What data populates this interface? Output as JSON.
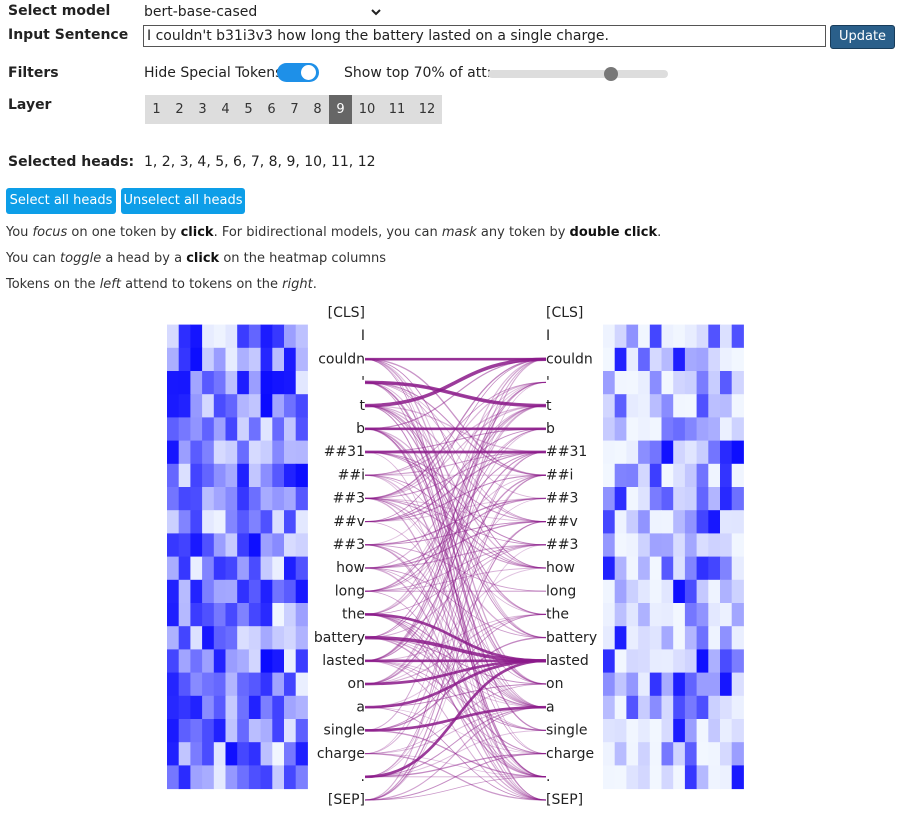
{
  "controls": {
    "select_model_label": "Select model",
    "model_value": "bert-base-cased",
    "input_label": "Input Sentence",
    "input_value": "I couldn't b31i3v3 how long the battery lasted on a single charge.",
    "update_label": "Update",
    "filters_label": "Filters",
    "hide_special_label": "Hide Special Tokens",
    "hide_special_on": true,
    "show_top_label": "Show top 70% of att:",
    "show_top_percent": 70,
    "layer_label": "Layer",
    "layers": [
      "1",
      "2",
      "3",
      "4",
      "5",
      "6",
      "7",
      "8",
      "9",
      "10",
      "11",
      "12"
    ],
    "active_layer": "9",
    "selected_heads_label": "Selected heads:",
    "selected_heads_value": "1, 2, 3, 4, 5, 6, 7, 8, 9, 10, 11, 12",
    "select_all_label": "Select all heads",
    "unselect_all_label": "Unselect all heads"
  },
  "notes": {
    "line1": {
      "a": "You ",
      "b": "focus",
      "c": " on one token by ",
      "d": "click",
      "e": ". For bidirectional models, you can ",
      "f": "mask",
      "g": " any token by ",
      "h": "double click",
      "i": "."
    },
    "line2": {
      "a": "You can ",
      "b": "toggle",
      "c": " a head by a ",
      "d": "click",
      "e": " on the heatmap columns"
    },
    "line3": {
      "a": "Tokens on the ",
      "b": "left",
      "c": " attend to tokens on the ",
      "d": "right",
      "e": "."
    }
  },
  "tokens": [
    "[CLS]",
    "I",
    "couldn",
    "'",
    "t",
    "b",
    "##31",
    "##i",
    "##3",
    "##v",
    "##3",
    "how",
    "long",
    "the",
    "battery",
    "lasted",
    "on",
    "a",
    "single",
    "charge",
    ".",
    "[SEP]"
  ],
  "colors": {
    "attention_line": "#8b1a89",
    "heat_max": "#0a1ff0",
    "heat_min": "#ffffff"
  },
  "strong_links": [
    [
      2,
      3
    ],
    [
      3,
      1
    ],
    [
      13,
      14
    ],
    [
      15,
      14
    ],
    [
      12,
      14
    ],
    [
      4,
      4
    ],
    [
      5,
      5
    ],
    [
      17,
      16
    ],
    [
      14,
      14
    ],
    [
      1,
      1
    ],
    [
      19,
      14
    ],
    [
      16,
      14
    ]
  ]
}
